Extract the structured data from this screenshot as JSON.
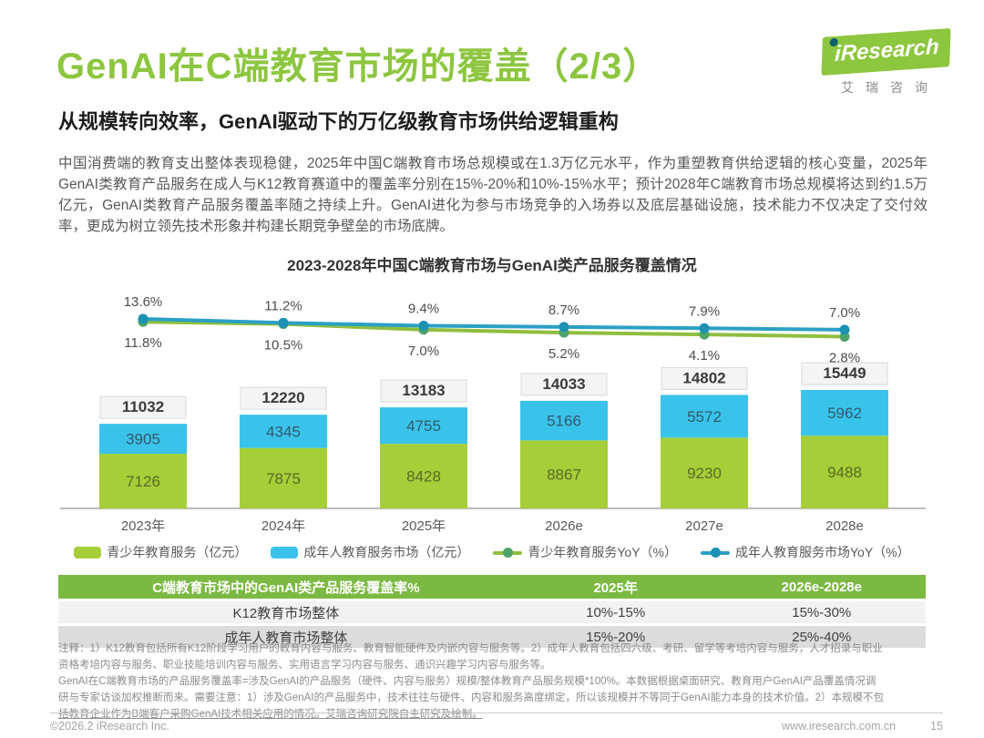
{
  "header": {
    "title": "GenAI在C端教育市场的覆盖（2/3）",
    "subtitle": "从规模转向效率，GenAI驱动下的万亿级教育市场供给逻辑重构",
    "logo": {
      "brand": "iResearch",
      "brand_cn": "艾瑞咨询"
    }
  },
  "intro": "中国消费端的教育支出整体表现稳健，2025年中国C端教育市场总规模或在1.3万亿元水平，作为重塑教育供给逻辑的核心变量，2025年GenAI类教育产品服务在成人与K12教育赛道中的覆盖率分别在15%-20%和10%-15%水平；预计2028年C端教育市场总规模将达到约1.5万亿元，GenAI类教育产品服务覆盖率随之持续上升。GenAI进化为参与市场竞争的入场券以及底层基础设施，技术能力不仅决定了交付效率，更成为树立领先技术形象并构建长期竞争壁垒的市场底牌。",
  "chart_data": {
    "type": "bar",
    "subtype": "stacked-bar-with-yoy-lines",
    "title": "2023-2028年中国C端教育市场与GenAI类产品服务覆盖情况",
    "categories": [
      "2023年",
      "2024年",
      "2025年",
      "2026e",
      "2027e",
      "2028e"
    ],
    "bar_series": [
      {
        "name": "青少年教育服务（亿元）",
        "color": "#a5ce39",
        "label_color": "seg-green",
        "values": [
          7126,
          7875,
          8428,
          8867,
          9230,
          9488
        ]
      },
      {
        "name": "成年人教育服务市场（亿元）",
        "color": "#3ac3ea",
        "label_color": "seg-blue",
        "values": [
          3905,
          4345,
          4755,
          5166,
          5572,
          5962
        ]
      }
    ],
    "totals": [
      11032,
      12220,
      13183,
      14033,
      14802,
      15449
    ],
    "line_series": [
      {
        "name": "青少年教育服务YoY（%）",
        "color": "#8fbe3e",
        "marker_color": "#4fa469",
        "label_position": "below",
        "values": [
          11.8,
          10.5,
          7.0,
          5.2,
          4.1,
          2.8
        ]
      },
      {
        "name": "成年人教育服务市场YoY（%）",
        "color": "#2ba0c6",
        "marker_color": "#1b91b4",
        "label_position": "above",
        "values": [
          13.6,
          11.2,
          9.4,
          8.7,
          7.9,
          7.0
        ]
      }
    ],
    "unit": "亿元",
    "legend_position": "bottom",
    "value_axis": "hidden",
    "grid": "off"
  },
  "table": {
    "header": [
      "C端教育市场中的GenAI类产品服务覆盖率%",
      "2025年",
      "2026e-2028e"
    ],
    "rows": [
      [
        "K12教育市场整体",
        "10%-15%",
        "15%-30%"
      ],
      [
        "成年人教育市场整体",
        "15%-20%",
        "25%-40%"
      ]
    ]
  },
  "notes": [
    "注释：1）K12教育包括所有K12阶段学习用户的教育内容与服务、教育智能硬件及内嵌内容与服务等。2）成年人教育包括四六级、考研、留学等考培内容与服务，人才招录与职业",
    "资格考培内容与服务、职业技能培训内容与服务、实用语言学习内容与服务、通识兴趣学习内容与服务等。",
    "GenAI在C端教育市场的产品服务覆盖率=涉及GenAI的产品服务（硬件、内容与服务）规模/整体教育产品服务规模*100%。本数据根据桌面研究、教育用户GenAI产品覆盖情况调",
    "研与专家访谈加权推断而来。需要注意：1）涉及GenAI的产品服务中，技术往往与硬件、内容和服务高度绑定，所以该规模并不等同于GenAI能力本身的技术价值。2）本规模不包",
    "括教育企业作为B端客户采购GenAI技术相关应用的情况。艾瑞咨询研究院自主研究及绘制。"
  ],
  "footer": {
    "copyright": "©2026.2 iResearch Inc.",
    "website": "www.iresearch.com.cn",
    "page_number": "15"
  }
}
